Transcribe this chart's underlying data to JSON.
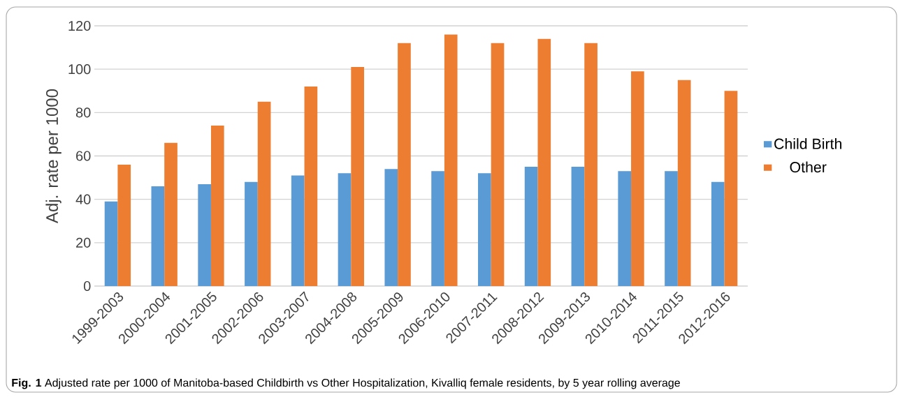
{
  "chart_data": {
    "type": "bar",
    "ylabel": "Adj. rate per 1000",
    "categories": [
      "1999-2003",
      "2000-2004",
      "2001-2005",
      "2002-2006",
      "2003-2007",
      "2004-2008",
      "2005-2009",
      "2006-2010",
      "2007-2011",
      "2008-2012",
      "2009-2013",
      "2010-2014",
      "2011-2015",
      "2012-2016"
    ],
    "series": [
      {
        "name": "Child Birth",
        "color": "#5b9bd5",
        "values": [
          39,
          46,
          47,
          48,
          51,
          52,
          54,
          53,
          52,
          55,
          55,
          53,
          53,
          48
        ]
      },
      {
        "name": "Other",
        "color": "#ed7d31",
        "values": [
          56,
          66,
          74,
          85,
          92,
          101,
          112,
          116,
          112,
          114,
          112,
          99,
          95,
          90
        ]
      }
    ],
    "ylim": [
      0,
      120
    ],
    "yticks": [
      0,
      20,
      40,
      60,
      80,
      100,
      120
    ],
    "grid": "y",
    "legend": "right",
    "annotations": [
      "**Fig. 1** Adjusted rate per 1000 of Manitoba-based Childbirth vs Other Hospitalization, Kivalliq female residents, by 5 year rolling average"
    ]
  }
}
